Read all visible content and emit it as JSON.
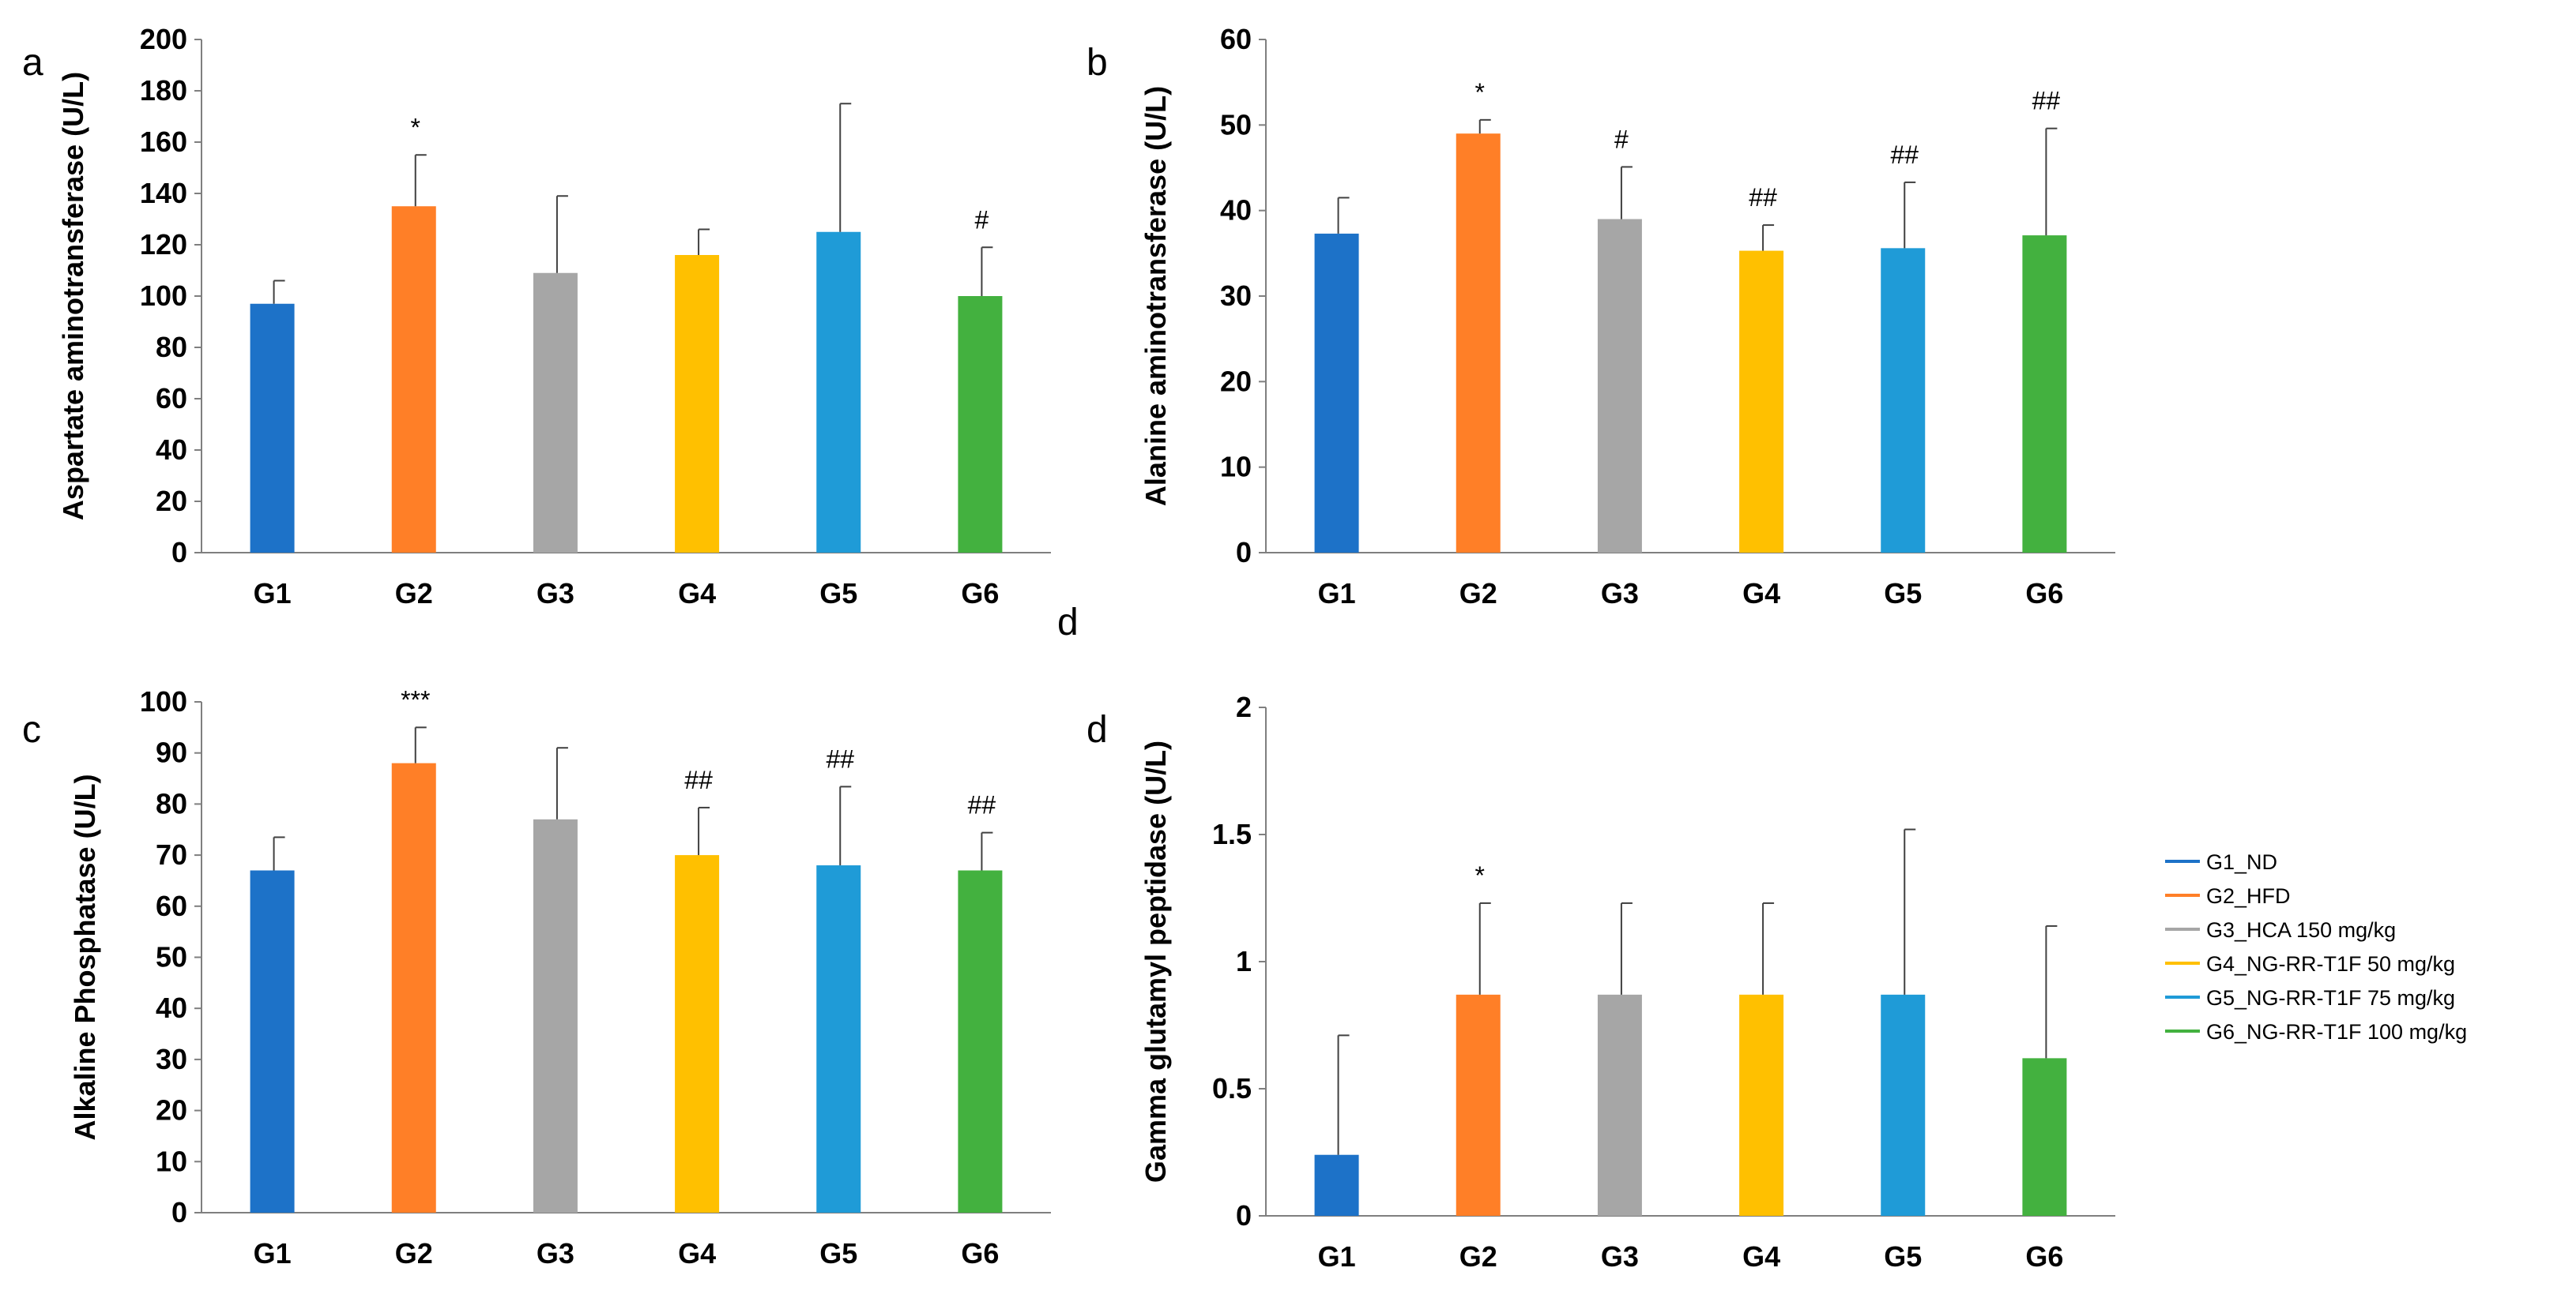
{
  "categories": [
    "G1",
    "G2",
    "G3",
    "G4",
    "G5",
    "G6"
  ],
  "colors": [
    "#1d72c8",
    "#ff7f27",
    "#a6a6a6",
    "#ffc000",
    "#1f9bd7",
    "#43b13f"
  ],
  "stray_letter": "d",
  "legend": [
    "G1_ND",
    "G2_HFD",
    "G3_HCA 150 mg/kg",
    "G4_NG-RR-T1F 50 mg/kg",
    "G5_NG-RR-T1F 75 mg/kg",
    "G6_NG-RR-T1F 100 mg/kg"
  ],
  "chart_data": [
    {
      "panel": "a",
      "type": "bar",
      "ylabel": "Aspartate aminotransferase (U/L)",
      "ylim": [
        0,
        200
      ],
      "yticks": [
        "0",
        "20",
        "40",
        "60",
        "80",
        "100",
        "120",
        "140",
        "160",
        "180",
        "200"
      ],
      "categories": [
        "G1",
        "G2",
        "G3",
        "G4",
        "G5",
        "G6"
      ],
      "values": [
        97,
        135,
        109,
        116,
        125,
        100
      ],
      "errors": [
        9,
        20,
        30,
        10,
        50,
        19
      ],
      "annotations": [
        "",
        "*",
        "",
        "",
        "",
        "#"
      ]
    },
    {
      "panel": "b",
      "type": "bar",
      "ylabel": "Alanine aminotransferase (U/L)",
      "ylim": [
        0,
        60
      ],
      "yticks": [
        "0",
        "10",
        "20",
        "30",
        "40",
        "50",
        "60"
      ],
      "categories": [
        "G1",
        "G2",
        "G3",
        "G4",
        "G5",
        "G6"
      ],
      "values": [
        37.3,
        49,
        39,
        35.3,
        35.6,
        37.1
      ],
      "errors": [
        4.2,
        1.6,
        6.1,
        3,
        7.7,
        12.5
      ],
      "annotations": [
        "",
        "*",
        "#",
        "##",
        "##",
        "##"
      ]
    },
    {
      "panel": "c",
      "type": "bar",
      "ylabel": "Alkaline Phosphatase (U/L)",
      "ylim": [
        0,
        100
      ],
      "yticks": [
        "0",
        "10",
        "20",
        "30",
        "40",
        "50",
        "60",
        "70",
        "80",
        "90",
        "100"
      ],
      "categories": [
        "G1",
        "G2",
        "G3",
        "G4",
        "G5",
        "G6"
      ],
      "values": [
        67,
        88,
        77,
        70,
        68,
        67
      ],
      "errors": [
        6.5,
        7,
        14,
        9.3,
        15.4,
        7.4
      ],
      "annotations": [
        "",
        "***",
        "",
        "##",
        "##",
        "##"
      ]
    },
    {
      "panel": "d",
      "type": "bar",
      "ylabel": "Gamma glutamyl peptidase (U/L)",
      "ylim": [
        0,
        2
      ],
      "yticks": [
        "0",
        "0.5",
        "1",
        "1.5",
        "2"
      ],
      "categories": [
        "G1",
        "G2",
        "G3",
        "G4",
        "G5",
        "G6"
      ],
      "values": [
        0.24,
        0.87,
        0.87,
        0.87,
        0.87,
        0.62
      ],
      "errors": [
        0.47,
        0.36,
        0.36,
        0.36,
        0.65,
        0.52
      ],
      "annotations": [
        "",
        "*",
        "",
        "",
        "",
        ""
      ]
    }
  ]
}
